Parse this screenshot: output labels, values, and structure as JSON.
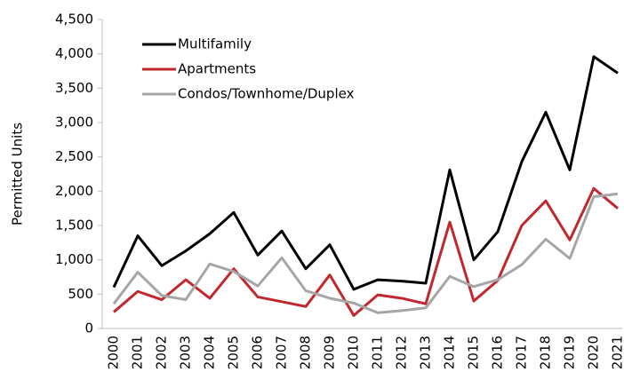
{
  "chart_data": {
    "type": "line",
    "y_label": "Permitted Units",
    "categories": [
      "2000",
      "2001",
      "2002",
      "2003",
      "2004",
      "2005",
      "2006",
      "2007",
      "2008",
      "2009",
      "2010",
      "2011",
      "2012",
      "2013",
      "2014",
      "2015",
      "2016",
      "2017",
      "2018",
      "2019",
      "2020",
      "2021"
    ],
    "series": [
      {
        "name": "Multifamily",
        "color": "#000000",
        "values": [
          600,
          1350,
          915,
          1130,
          1380,
          1690,
          1070,
          1420,
          870,
          1220,
          570,
          710,
          690,
          660,
          2310,
          1000,
          1410,
          2430,
          3150,
          2310,
          3960,
          3720
        ]
      },
      {
        "name": "Apartments",
        "color": "#c1272d",
        "values": [
          240,
          540,
          420,
          710,
          440,
          870,
          460,
          390,
          320,
          780,
          190,
          490,
          440,
          360,
          1550,
          400,
          700,
          1500,
          1860,
          1290,
          2040,
          1750
        ]
      },
      {
        "name": "Condos/Townhome/Duplex",
        "color": "#a6a6a6",
        "values": [
          360,
          820,
          480,
          420,
          940,
          830,
          620,
          1030,
          550,
          440,
          370,
          230,
          260,
          300,
          760,
          610,
          710,
          930,
          1300,
          1020,
          1920,
          1960
        ]
      }
    ],
    "ylim": [
      0,
      4500
    ],
    "yticks": [
      0,
      500,
      {
        "value": 1000,
        "label": "1,000"
      },
      {
        "value": 1500,
        "label": "1,500"
      },
      {
        "value": 2000,
        "label": "2,000"
      },
      {
        "value": 2500,
        "label": "2,500"
      },
      {
        "value": 3000,
        "label": "3,000"
      },
      {
        "value": 3500,
        "label": "3,500"
      },
      {
        "value": 4000,
        "label": "4,000"
      },
      {
        "value": 4500,
        "label": "4,500"
      }
    ],
    "legend": "top-left"
  }
}
